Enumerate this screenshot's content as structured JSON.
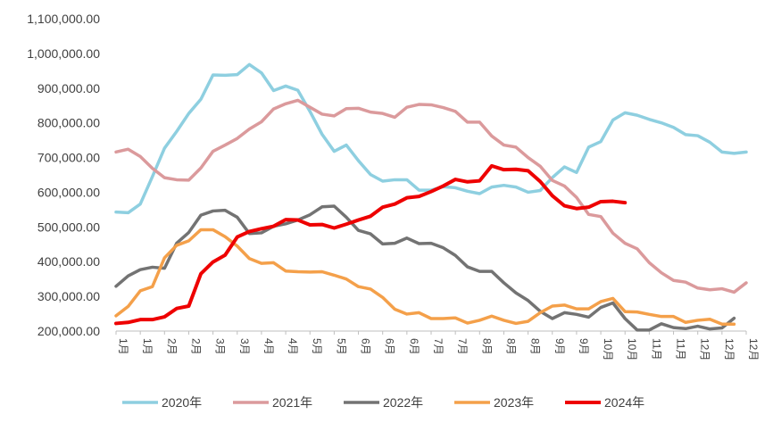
{
  "chart_data": {
    "type": "line",
    "title": "",
    "xlabel": "",
    "ylabel": "",
    "ylim": [
      200000,
      1100000
    ],
    "y_ticks": [
      200000,
      300000,
      400000,
      500000,
      600000,
      700000,
      800000,
      900000,
      1000000,
      1100000
    ],
    "y_tick_labels": [
      "200,000.00",
      "300,000.00",
      "400,000.00",
      "500,000.00",
      "600,000.00",
      "700,000.00",
      "800,000.00",
      "900,000.00",
      "1,000,000.00",
      "1,100,000.00"
    ],
    "x_ticks": [
      {
        "label": "1月",
        "pos": 0
      },
      {
        "label": "1月",
        "pos": 2
      },
      {
        "label": "2月",
        "pos": 4
      },
      {
        "label": "2月",
        "pos": 6
      },
      {
        "label": "3月",
        "pos": 8
      },
      {
        "label": "3月",
        "pos": 10
      },
      {
        "label": "4月",
        "pos": 12
      },
      {
        "label": "4月",
        "pos": 14
      },
      {
        "label": "5月",
        "pos": 16
      },
      {
        "label": "5月",
        "pos": 18
      },
      {
        "label": "6月",
        "pos": 20
      },
      {
        "label": "6月",
        "pos": 22
      },
      {
        "label": "6月",
        "pos": 24
      },
      {
        "label": "7月",
        "pos": 26
      },
      {
        "label": "7月",
        "pos": 28
      },
      {
        "label": "8月",
        "pos": 30
      },
      {
        "label": "8月",
        "pos": 32
      },
      {
        "label": "8月",
        "pos": 34
      },
      {
        "label": "9月",
        "pos": 36
      },
      {
        "label": "9月",
        "pos": 38
      },
      {
        "label": "10月",
        "pos": 40
      },
      {
        "label": "10月",
        "pos": 42
      },
      {
        "label": "11月",
        "pos": 44
      },
      {
        "label": "11月",
        "pos": 46
      },
      {
        "label": "12月",
        "pos": 48
      },
      {
        "label": "12月",
        "pos": 50
      },
      {
        "label": "12月",
        "pos": 52
      }
    ],
    "x_range": [
      0,
      52
    ],
    "grid": false,
    "legend_position": "bottom",
    "series": [
      {
        "name": "2020年",
        "color": "#8ecfe0",
        "values": [
          543000,
          541000,
          566000,
          645000,
          727000,
          775000,
          827000,
          868000,
          938000,
          937000,
          939000,
          968000,
          944000,
          893000,
          906000,
          894000,
          833000,
          767000,
          718000,
          736000,
          691000,
          651000,
          632000,
          636000,
          636000,
          606000,
          606000,
          616000,
          613000,
          603000,
          596000,
          615000,
          620000,
          615000,
          600000,
          605000,
          642000,
          673000,
          657000,
          730000,
          746000,
          808000,
          829000,
          822000,
          810000,
          800000,
          787000,
          766000,
          763000,
          744000,
          716000,
          712000,
          716000
        ]
      },
      {
        "name": "2021年",
        "color": "#db9a9c",
        "values": [
          716000,
          724000,
          703000,
          669000,
          642000,
          636000,
          635000,
          670000,
          718000,
          736000,
          755000,
          782000,
          803000,
          840000,
          855000,
          865000,
          845000,
          825000,
          820000,
          841000,
          842000,
          831000,
          827000,
          816000,
          845000,
          853000,
          852000,
          844000,
          833000,
          802000,
          802000,
          762000,
          736000,
          730000,
          700000,
          675000,
          634000,
          618000,
          585000,
          536000,
          530000,
          482000,
          453000,
          437000,
          397000,
          368000,
          346000,
          341000,
          324000,
          319000,
          322000,
          312000,
          339000
        ]
      },
      {
        "name": "2022年",
        "color": "#737373",
        "values": [
          329000,
          359000,
          377000,
          384000,
          381000,
          453000,
          484000,
          534000,
          546000,
          548000,
          528000,
          481000,
          483000,
          502000,
          509000,
          520000,
          535000,
          558000,
          560000,
          528000,
          490000,
          480000,
          451000,
          453000,
          468000,
          452000,
          453000,
          440000,
          418000,
          385000,
          372000,
          372000,
          339000,
          310000,
          288000,
          257000,
          236000,
          253000,
          248000,
          240000,
          268000,
          281000,
          236000,
          203000,
          203000,
          221000,
          210000,
          207000,
          214000,
          206000,
          209000,
          237000,
          null
        ]
      },
      {
        "name": "2023年",
        "color": "#f4a04a",
        "values": [
          244000,
          271000,
          316000,
          328000,
          411000,
          447000,
          460000,
          492000,
          492000,
          472000,
          445000,
          409000,
          395000,
          397000,
          373000,
          371000,
          370000,
          371000,
          361000,
          350000,
          328000,
          321000,
          297000,
          263000,
          249000,
          253000,
          236000,
          236000,
          238000,
          223000,
          231000,
          243000,
          231000,
          222000,
          228000,
          253000,
          272000,
          275000,
          264000,
          264000,
          285000,
          294000,
          256000,
          255000,
          248000,
          242000,
          242000,
          225000,
          231000,
          234000,
          220000,
          220000,
          null
        ]
      },
      {
        "name": "2024年",
        "color": "#ee0000",
        "values": [
          222000,
          225000,
          233000,
          233000,
          241000,
          265000,
          272000,
          365000,
          399000,
          419000,
          471000,
          487000,
          495000,
          502000,
          521000,
          520000,
          506000,
          507000,
          497000,
          508000,
          520000,
          531000,
          557000,
          566000,
          584000,
          588000,
          602000,
          618000,
          637000,
          630000,
          633000,
          676000,
          665000,
          666000,
          662000,
          631000,
          590000,
          561000,
          553000,
          557000,
          573000,
          574000,
          570000,
          null,
          null,
          null,
          null,
          null,
          null,
          null,
          null,
          null,
          null
        ]
      }
    ]
  }
}
